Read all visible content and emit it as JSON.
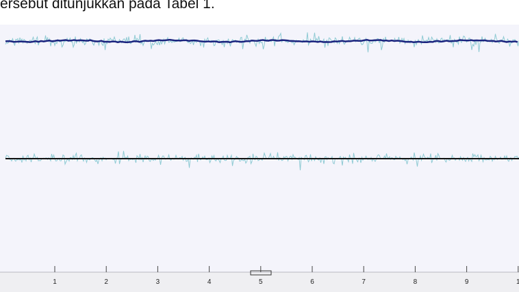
{
  "header": {
    "text": "ersebut ditunjukkan pada Tabel 1."
  },
  "axis": {
    "labels": [
      "1",
      "2",
      "3",
      "4",
      "5",
      "6",
      "7",
      "8",
      "9",
      "1"
    ]
  }
}
